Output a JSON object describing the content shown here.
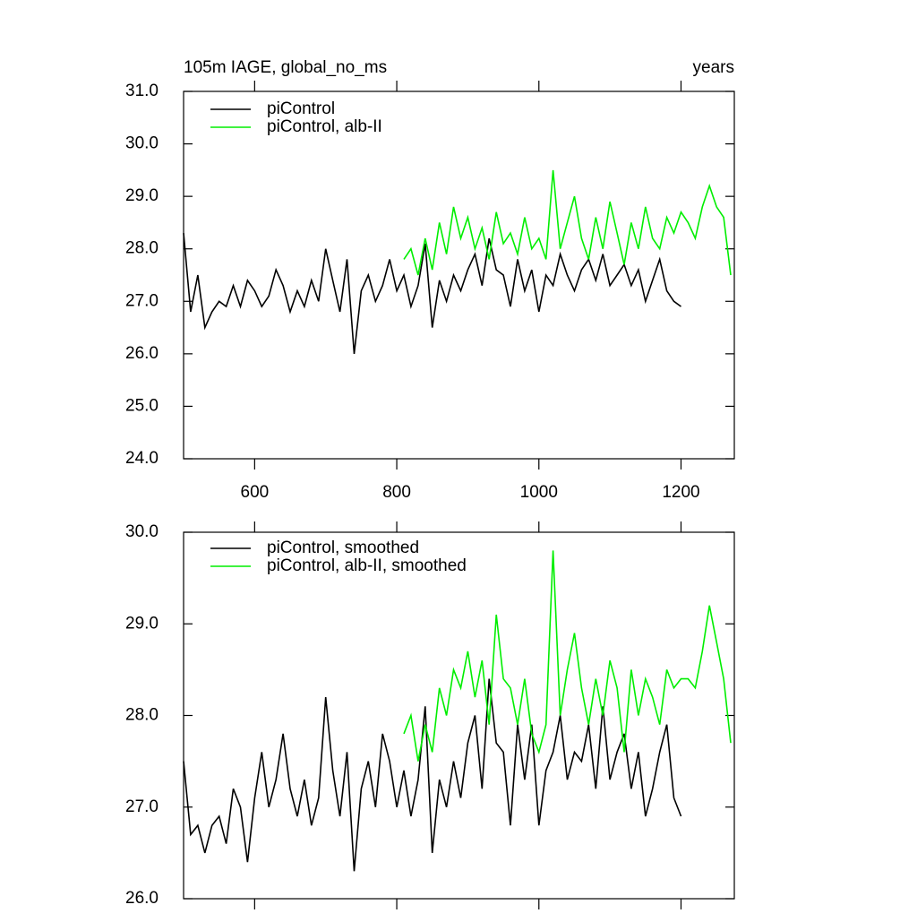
{
  "chart_data": [
    {
      "type": "line",
      "title": "105m IAGE, global_no_ms",
      "units_label": "years",
      "xlim": [
        500,
        1275
      ],
      "xticks": [
        600,
        800,
        1000,
        1200
      ],
      "ylim": [
        24,
        31
      ],
      "yticks": [
        {
          "value": 24,
          "label": "24.0"
        },
        {
          "value": 25,
          "label": "25.0"
        },
        {
          "value": 26,
          "label": "26.0"
        },
        {
          "value": 27,
          "label": "27.0"
        },
        {
          "value": 28,
          "label": "28.0"
        },
        {
          "value": 29,
          "label": "29.0"
        },
        {
          "value": 30,
          "label": "30.0"
        },
        {
          "value": 31,
          "label": "31.0"
        }
      ],
      "series": [
        {
          "name": "piControl",
          "color": "#000000",
          "x": [
            500,
            510,
            520,
            530,
            540,
            550,
            560,
            570,
            580,
            590,
            600,
            610,
            620,
            630,
            640,
            650,
            660,
            670,
            680,
            690,
            700,
            710,
            720,
            730,
            740,
            750,
            760,
            770,
            780,
            790,
            800,
            810,
            820,
            830,
            840,
            850,
            860,
            870,
            880,
            890,
            900,
            910,
            920,
            930,
            940,
            950,
            960,
            970,
            980,
            990,
            1000,
            1010,
            1020,
            1030,
            1040,
            1050,
            1060,
            1070,
            1080,
            1090,
            1100,
            1110,
            1120,
            1130,
            1140,
            1150,
            1160,
            1170,
            1180,
            1190,
            1200
          ],
          "values": [
            28.3,
            26.8,
            27.5,
            26.5,
            26.8,
            27.0,
            26.9,
            27.3,
            26.9,
            27.4,
            27.2,
            26.9,
            27.1,
            27.6,
            27.3,
            26.8,
            27.2,
            26.9,
            27.4,
            27.0,
            28.0,
            27.4,
            26.8,
            27.8,
            26.0,
            27.2,
            27.5,
            27.0,
            27.3,
            27.8,
            27.2,
            27.5,
            26.9,
            27.3,
            28.1,
            26.5,
            27.4,
            27.0,
            27.5,
            27.2,
            27.6,
            27.9,
            27.3,
            28.2,
            27.6,
            27.5,
            26.9,
            27.8,
            27.2,
            27.6,
            26.8,
            27.5,
            27.3,
            27.9,
            27.5,
            27.2,
            27.6,
            27.8,
            27.4,
            27.9,
            27.3,
            27.5,
            27.7,
            27.3,
            27.6,
            27.0,
            27.4,
            27.8,
            27.2,
            27.0,
            26.9
          ]
        },
        {
          "name": "piControl, alb-II",
          "color": "#00ee00",
          "x": [
            810,
            820,
            830,
            840,
            850,
            860,
            870,
            880,
            890,
            900,
            910,
            920,
            930,
            940,
            950,
            960,
            970,
            980,
            990,
            1000,
            1010,
            1020,
            1030,
            1040,
            1050,
            1060,
            1070,
            1080,
            1090,
            1100,
            1110,
            1120,
            1130,
            1140,
            1150,
            1160,
            1170,
            1180,
            1190,
            1200,
            1210,
            1220,
            1230,
            1240,
            1250,
            1260,
            1270
          ],
          "values": [
            27.8,
            28.0,
            27.5,
            28.2,
            27.6,
            28.5,
            27.9,
            28.8,
            28.2,
            28.6,
            28.0,
            28.4,
            27.8,
            28.7,
            28.1,
            28.3,
            27.9,
            28.6,
            28.0,
            28.2,
            27.8,
            29.5,
            28.0,
            28.5,
            29.0,
            28.2,
            27.8,
            28.6,
            28.0,
            28.9,
            28.3,
            27.7,
            28.5,
            28.0,
            28.8,
            28.2,
            28.0,
            28.6,
            28.3,
            28.7,
            28.5,
            28.2,
            28.8,
            29.2,
            28.8,
            28.6,
            27.5
          ]
        }
      ]
    },
    {
      "type": "line",
      "xlim": [
        500,
        1275
      ],
      "xticks": [
        600,
        800,
        1000,
        1200
      ],
      "ylim": [
        26,
        30
      ],
      "yticks": [
        {
          "value": 26,
          "label": "26.0"
        },
        {
          "value": 27,
          "label": "27.0"
        },
        {
          "value": 28,
          "label": "28.0"
        },
        {
          "value": 29,
          "label": "29.0"
        },
        {
          "value": 30,
          "label": "30.0"
        }
      ],
      "series": [
        {
          "name": "piControl, smoothed",
          "color": "#000000",
          "x": [
            500,
            510,
            520,
            530,
            540,
            550,
            560,
            570,
            580,
            590,
            600,
            610,
            620,
            630,
            640,
            650,
            660,
            670,
            680,
            690,
            700,
            710,
            720,
            730,
            740,
            750,
            760,
            770,
            780,
            790,
            800,
            810,
            820,
            830,
            840,
            850,
            860,
            870,
            880,
            890,
            900,
            910,
            920,
            930,
            940,
            950,
            960,
            970,
            980,
            990,
            1000,
            1010,
            1020,
            1030,
            1040,
            1050,
            1060,
            1070,
            1080,
            1090,
            1100,
            1110,
            1120,
            1130,
            1140,
            1150,
            1160,
            1170,
            1180,
            1190,
            1200
          ],
          "values": [
            27.5,
            26.7,
            26.8,
            26.5,
            26.8,
            26.9,
            26.6,
            27.2,
            27.0,
            26.4,
            27.1,
            27.6,
            27.0,
            27.3,
            27.8,
            27.2,
            26.9,
            27.3,
            26.8,
            27.1,
            28.2,
            27.4,
            26.9,
            27.6,
            26.3,
            27.2,
            27.5,
            27.0,
            27.8,
            27.5,
            27.0,
            27.4,
            26.9,
            27.3,
            28.1,
            26.5,
            27.3,
            27.0,
            27.5,
            27.1,
            27.7,
            28.0,
            27.2,
            28.4,
            27.7,
            27.6,
            26.8,
            27.9,
            27.3,
            27.9,
            26.8,
            27.4,
            27.6,
            28.0,
            27.3,
            27.6,
            27.5,
            27.9,
            27.2,
            28.1,
            27.3,
            27.6,
            27.8,
            27.2,
            27.6,
            26.9,
            27.2,
            27.6,
            27.9,
            27.1,
            26.9
          ]
        },
        {
          "name": "piControl, alb-II, smoothed",
          "color": "#00ee00",
          "x": [
            810,
            820,
            830,
            840,
            850,
            860,
            870,
            880,
            890,
            900,
            910,
            920,
            930,
            940,
            950,
            960,
            970,
            980,
            990,
            1000,
            1010,
            1020,
            1030,
            1040,
            1050,
            1060,
            1070,
            1080,
            1090,
            1100,
            1110,
            1120,
            1130,
            1140,
            1150,
            1160,
            1170,
            1180,
            1190,
            1200,
            1210,
            1220,
            1230,
            1240,
            1250,
            1260,
            1270
          ],
          "values": [
            27.8,
            28.0,
            27.5,
            27.9,
            27.6,
            28.3,
            28.0,
            28.5,
            28.3,
            28.7,
            28.2,
            28.6,
            27.9,
            29.1,
            28.4,
            28.3,
            27.9,
            28.4,
            27.8,
            27.6,
            27.9,
            29.8,
            28.0,
            28.5,
            28.9,
            28.3,
            27.9,
            28.4,
            28.0,
            28.6,
            28.3,
            27.6,
            28.5,
            28.0,
            28.4,
            28.2,
            27.9,
            28.5,
            28.3,
            28.4,
            28.4,
            28.3,
            28.7,
            29.2,
            28.8,
            28.4,
            27.7
          ]
        }
      ]
    }
  ]
}
